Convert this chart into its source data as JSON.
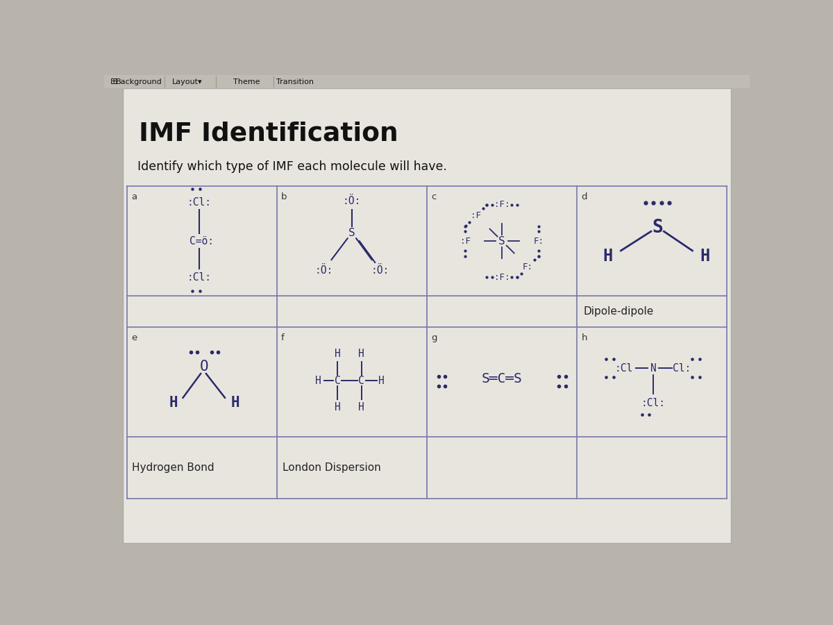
{
  "title": "IMF Identification",
  "subtitle": "Identify which type of IMF each molecule will have.",
  "bg_color": "#b8b4ac",
  "slide_bg": "#e8e5df",
  "border_color": "#7777aa",
  "text_color": "#2a2a6a",
  "dark_text": "#222222",
  "title_color": "#111111",
  "molecule_color": "#2a2a6a",
  "toolbar_bg": "#c0bcb4",
  "toolbar_text": "#111111",
  "answer_d": "Dipole-dipole",
  "answer_e": "Hydrogen Bond",
  "answer_f": "London Dispersion"
}
